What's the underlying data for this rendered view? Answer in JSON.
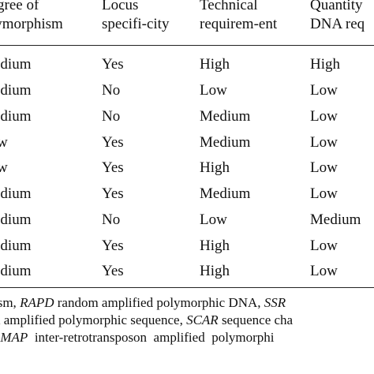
{
  "header": {
    "degree_line1": "gree of",
    "degree_line2": "lymorphism",
    "locus_line1": "Locus",
    "locus_line2": "specifi-city",
    "tech_line1": "Technical",
    "tech_line2": "requirem-ent",
    "qty_line1": "Quantity",
    "qty_line2": "DNA req"
  },
  "rows": [
    {
      "degree": "edium",
      "locus": "Yes",
      "tech": "High",
      "qty": "High"
    },
    {
      "degree": "edium",
      "locus": "No",
      "tech": "Low",
      "qty": "Low"
    },
    {
      "degree": "edium",
      "locus": "No",
      "tech": "Medium",
      "qty": "Low"
    },
    {
      "degree": "w",
      "locus": "Yes",
      "tech": "Medium",
      "qty": "Low"
    },
    {
      "degree": "w",
      "locus": "Yes",
      "tech": "High",
      "qty": "Low"
    },
    {
      "degree": "edium",
      "locus": "Yes",
      "tech": "Medium",
      "qty": "Low"
    },
    {
      "degree": "edium",
      "locus": "No",
      "tech": "Low",
      "qty": "Medium"
    },
    {
      "degree": "edium",
      "locus": "Yes",
      "tech": "High",
      "qty": "Low"
    },
    {
      "degree": "edium",
      "locus": "Yes",
      "tech": "High",
      "qty": "Low"
    }
  ],
  "footnote": {
    "line1_a": "ism, ",
    "line1_b": "RAPD",
    "line1_c": " random amplified polymorphic DNA, ",
    "line1_d": "SSR",
    "line2_a": "d amplified polymorphic sequence, ",
    "line2_b": "SCAR",
    "line2_c": " sequence cha",
    "line3_a": "EMAP",
    "line3_b": "  inter-retrotransposon  amplified  polymorphi"
  }
}
